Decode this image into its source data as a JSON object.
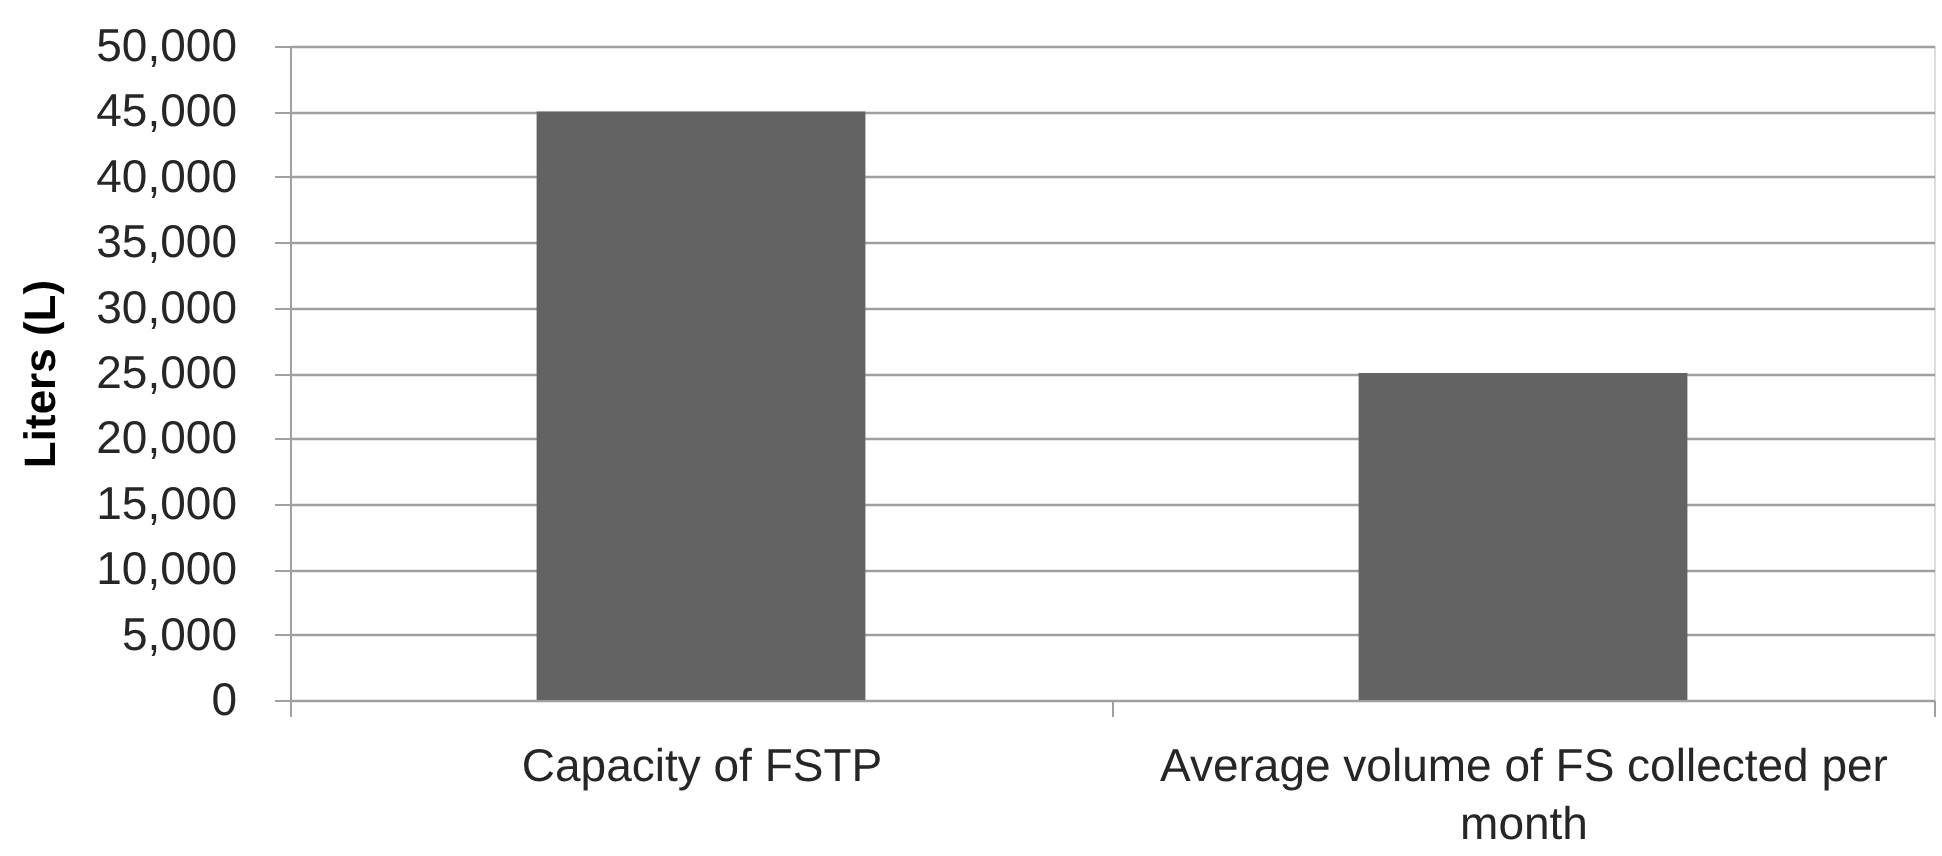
{
  "chart_data": {
    "type": "bar",
    "ylabel": "Liters (L)",
    "categories": [
      "Capacity of FSTP",
      "Average volume of FS collected per month"
    ],
    "values": [
      45000,
      25000
    ],
    "color": "#636363",
    "ylim": [
      0,
      50000
    ],
    "yticks": [
      0,
      {
        "value": 5000,
        "label": "5,000"
      },
      {
        "value": 10000,
        "label": "10,000"
      },
      {
        "value": 15000,
        "label": "15,000"
      },
      {
        "value": 20000,
        "label": "20,000"
      },
      {
        "value": 25000,
        "label": "25,000"
      },
      {
        "value": 30000,
        "label": "30,000"
      },
      {
        "value": 35000,
        "label": "35,000"
      },
      {
        "value": 40000,
        "label": "40,000"
      },
      {
        "value": 45000,
        "label": "45,000"
      },
      {
        "value": 50000,
        "label": "50,000"
      }
    ],
    "grid": "y"
  }
}
